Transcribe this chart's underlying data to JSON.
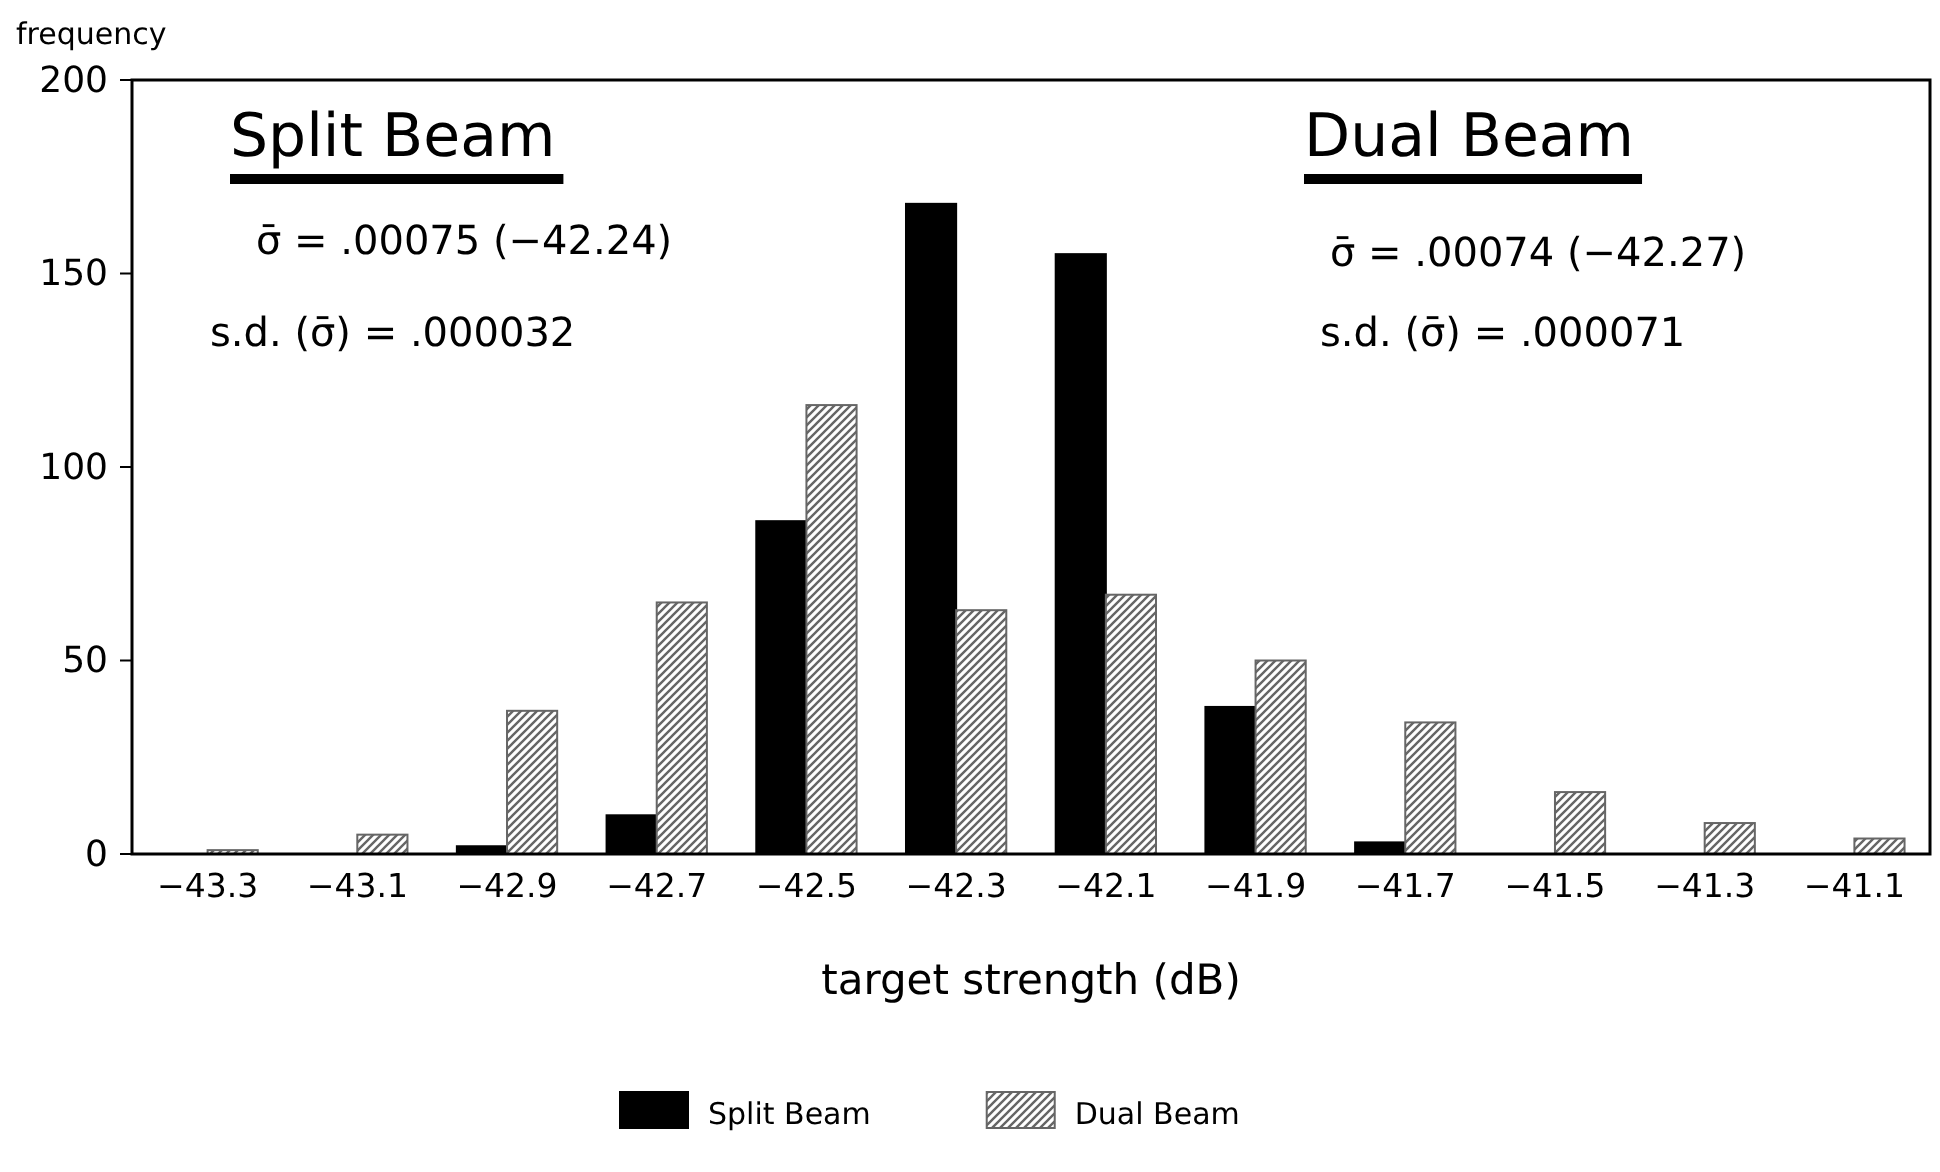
{
  "chart_data": {
    "type": "bar",
    "xlabel": "target strength (dB)",
    "ylabel": "frequency",
    "categories": [
      "−43.3",
      "−43.1",
      "−42.9",
      "−42.7",
      "−42.5",
      "−42.3",
      "−42.1",
      "−41.9",
      "−41.7",
      "−41.5",
      "−41.3",
      "−41.1"
    ],
    "series": [
      {
        "name": "Split Beam",
        "color": "#000000",
        "values": [
          0,
          0,
          2,
          10,
          86,
          168,
          155,
          38,
          3,
          0,
          0,
          0
        ]
      },
      {
        "name": "Dual Beam",
        "color": "#666666",
        "values": [
          1,
          5,
          37,
          65,
          116,
          63,
          67,
          50,
          34,
          16,
          8,
          4
        ]
      }
    ],
    "ylim": [
      0,
      200
    ],
    "yticks": [
      0,
      50,
      100,
      150,
      200
    ],
    "grid": false,
    "legend": "bottom",
    "annotations": [
      "Split Beam",
      "σ̄ = .00075 (−42.24)",
      "s.d. (σ̄) = .000032",
      "Dual Beam",
      "σ̄ = .00074 (−42.27)",
      "s.d. (σ̄) = .000071"
    ]
  }
}
